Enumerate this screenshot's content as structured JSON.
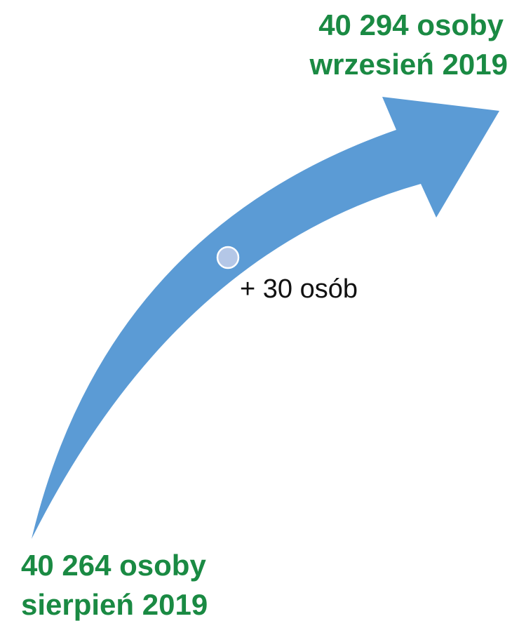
{
  "end": {
    "line1": "40 294 osoby",
    "line2": "wrzesień 2019"
  },
  "change": "+ 30 osób",
  "start": {
    "line1": "40 264 osoby",
    "line2": "sierpień 2019"
  }
}
